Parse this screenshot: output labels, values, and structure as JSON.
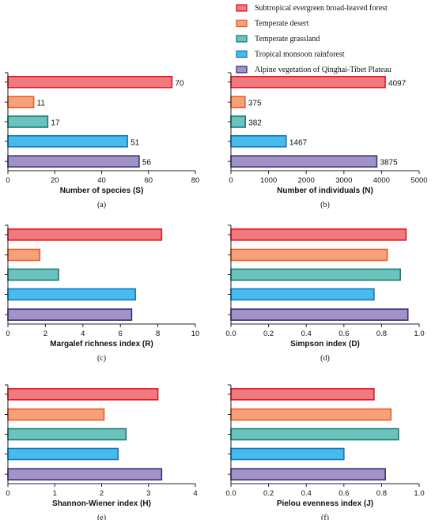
{
  "legend": [
    {
      "label": "Subtropical evergreen broad-leaved forest",
      "fill": "#f07a80",
      "stroke": "#e8131f"
    },
    {
      "label": "Temperate desert",
      "fill": "#f5a27a",
      "stroke": "#ee5a23"
    },
    {
      "label": "Temperate grassland",
      "fill": "#6cc2bd",
      "stroke": "#147e77"
    },
    {
      "label": "Tropical monsoon rainforest",
      "fill": "#47bcec",
      "stroke": "#1178c4"
    },
    {
      "label": "Alpine vegetation of Qinghai-Tibet Plateau",
      "fill": "#a193c6",
      "stroke": "#3f2d7c"
    }
  ],
  "chart_data": [
    {
      "type": "bar",
      "orientation": "horizontal",
      "caption": "(a)",
      "xlabel": "Number of species (S)",
      "categories": [
        "Subtropical evergreen broad-leaved forest",
        "Temperate desert",
        "Temperate grassland",
        "Tropical monsoon rainforest",
        "Alpine vegetation of Qinghai-Tibet Plateau"
      ],
      "values": [
        70,
        11,
        17,
        51,
        56
      ],
      "data_labels": [
        "70",
        "11",
        "17",
        "51",
        "56"
      ],
      "xlim": [
        0,
        80
      ],
      "xticks": [
        "0",
        "20",
        "40",
        "60",
        "80"
      ]
    },
    {
      "type": "bar",
      "orientation": "horizontal",
      "caption": "(b)",
      "xlabel": "Number of individuals (N)",
      "categories": [
        "Subtropical evergreen broad-leaved forest",
        "Temperate desert",
        "Temperate grassland",
        "Tropical monsoon rainforest",
        "Alpine vegetation of Qinghai-Tibet Plateau"
      ],
      "values": [
        4097,
        375,
        382,
        1467,
        3875
      ],
      "data_labels": [
        "4097",
        "375",
        "382",
        "1467",
        "3875"
      ],
      "xlim": [
        0,
        5000
      ],
      "xticks": [
        "0",
        "1000",
        "2000",
        "3000",
        "4000",
        "5000"
      ]
    },
    {
      "type": "bar",
      "orientation": "horizontal",
      "caption": "(c)",
      "xlabel": "Margalef richness index (R)",
      "categories": [
        "Subtropical evergreen broad-leaved forest",
        "Temperate desert",
        "Temperate grassland",
        "Tropical monsoon rainforest",
        "Alpine vegetation of Qinghai-Tibet Plateau"
      ],
      "values": [
        8.2,
        1.7,
        2.7,
        6.8,
        6.6
      ],
      "xlim": [
        0,
        10
      ],
      "xticks": [
        "0",
        "2",
        "4",
        "6",
        "8",
        "10"
      ]
    },
    {
      "type": "bar",
      "orientation": "horizontal",
      "caption": "(d)",
      "xlabel": "Simpson index (D)",
      "categories": [
        "Subtropical evergreen broad-leaved forest",
        "Temperate desert",
        "Temperate grassland",
        "Tropical monsoon rainforest",
        "Alpine vegetation of Qinghai-Tibet Plateau"
      ],
      "values": [
        0.93,
        0.83,
        0.9,
        0.76,
        0.94
      ],
      "xlim": [
        0,
        1
      ],
      "xticks": [
        "0.0",
        "0.2",
        "0.4",
        "0.6",
        "0.8",
        "1.0"
      ]
    },
    {
      "type": "bar",
      "orientation": "horizontal",
      "caption": "(e)",
      "xlabel": "Shannon-Wiener index (H)",
      "categories": [
        "Subtropical evergreen broad-leaved forest",
        "Temperate desert",
        "Temperate grassland",
        "Tropical monsoon rainforest",
        "Alpine vegetation of Qinghai-Tibet Plateau"
      ],
      "values": [
        3.2,
        2.05,
        2.52,
        2.35,
        3.28
      ],
      "xlim": [
        0,
        4
      ],
      "xticks": [
        "0",
        "1",
        "2",
        "3",
        "4"
      ]
    },
    {
      "type": "bar",
      "orientation": "horizontal",
      "caption": "(f)",
      "xlabel": "Pielou evenness index (J)",
      "categories": [
        "Subtropical evergreen broad-leaved forest",
        "Temperate desert",
        "Temperate grassland",
        "Tropical monsoon rainforest",
        "Alpine vegetation of Qinghai-Tibet Plateau"
      ],
      "values": [
        0.76,
        0.85,
        0.89,
        0.6,
        0.82
      ],
      "xlim": [
        0,
        1
      ],
      "xticks": [
        "0.0",
        "0.2",
        "0.4",
        "0.6",
        "0.8",
        "1.0"
      ]
    }
  ]
}
